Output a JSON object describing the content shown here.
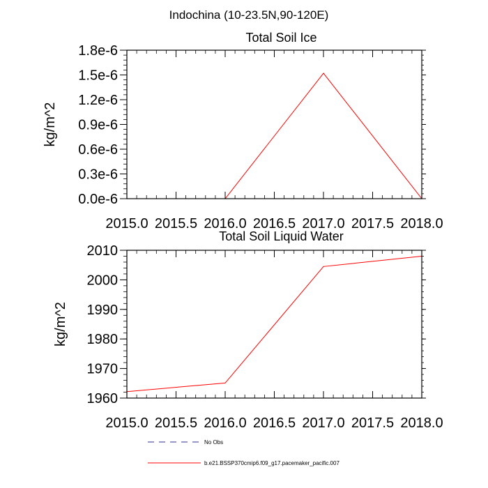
{
  "figure_title": "Indochina (10-23.5N,90-120E)",
  "chart_data": [
    {
      "type": "line",
      "title": "Total Soil Ice",
      "xlabel": "",
      "ylabel": "kg/m^2",
      "x": [
        2015,
        2016,
        2017,
        2018
      ],
      "xlim": [
        2015.0,
        2018.0
      ],
      "ylim": [
        0,
        1.8e-06
      ],
      "xticks": [
        2015.0,
        2015.5,
        2016.0,
        2016.5,
        2017.0,
        2017.5,
        2018.0
      ],
      "xtick_labels": [
        "2015.0",
        "2015.5",
        "2016.0",
        "2016.5",
        "2017.0",
        "2017.5",
        "2018.0"
      ],
      "yticks": [
        0,
        3e-07,
        6e-07,
        9e-07,
        1.2e-06,
        1.5e-06,
        1.8e-06
      ],
      "ytick_labels": [
        "0.0e-6",
        "0.3e-6",
        "0.6e-6",
        "0.9e-6",
        "1.2e-6",
        "1.5e-6",
        "1.8e-6"
      ],
      "series": [
        {
          "name": "b.e21.BSSP370cmip6.f09_g17.pacemaker_pacific.007",
          "color": "#ff0000",
          "values": [
            0,
            0,
            1.52e-06,
            0
          ]
        }
      ]
    },
    {
      "type": "line",
      "title": "Total Soil Liquid Water",
      "xlabel": "",
      "ylabel": "kg/m^2",
      "x": [
        2015,
        2016,
        2017,
        2018
      ],
      "xlim": [
        2015.0,
        2018.0
      ],
      "ylim": [
        1960,
        2010
      ],
      "xticks": [
        2015.0,
        2015.5,
        2016.0,
        2016.5,
        2017.0,
        2017.5,
        2018.0
      ],
      "xtick_labels": [
        "2015.0",
        "2015.5",
        "2016.0",
        "2016.5",
        "2017.0",
        "2017.5",
        "2018.0"
      ],
      "yticks": [
        1960,
        1970,
        1980,
        1990,
        2000,
        2010
      ],
      "ytick_labels": [
        "1960",
        "1970",
        "1980",
        "1990",
        "2000",
        "2010"
      ],
      "series": [
        {
          "name": "b.e21.BSSP370cmip6.f09_g17.pacemaker_pacific.007",
          "color": "#ff0000",
          "values": [
            1962.2,
            1965.1,
            2004.5,
            2008.0
          ]
        }
      ]
    }
  ],
  "legend": [
    {
      "label": "No Obs",
      "color": "#2e2e8f",
      "style": "dashed"
    },
    {
      "label": "b.e21.BSSP370cmip6.f09_g17.pacemaker_pacific.007",
      "color": "#ff0000",
      "style": "solid"
    }
  ]
}
